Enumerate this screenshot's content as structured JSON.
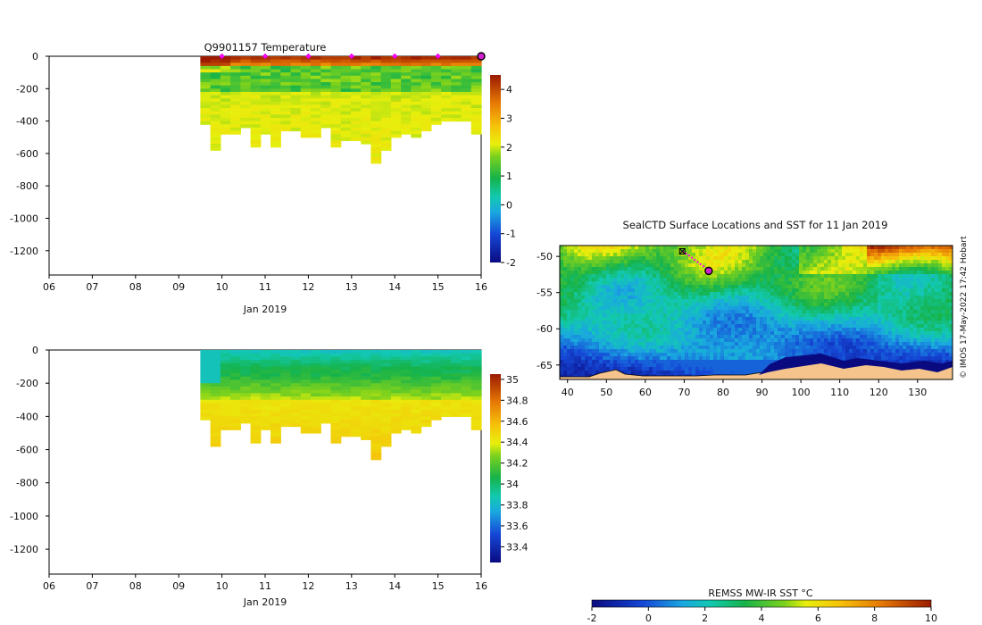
{
  "chart_data": [
    {
      "id": "temperature",
      "type": "heatmap",
      "title": "Q9901157  Temperature",
      "xlabel": "Jan 2019",
      "x_tick_labels": [
        "06",
        "07",
        "08",
        "09",
        "10",
        "11",
        "12",
        "13",
        "14",
        "15",
        "16"
      ],
      "x_range_days": [
        6,
        16
      ],
      "y_ticks": [
        0,
        -200,
        -400,
        -600,
        -800,
        -1000,
        -1200
      ],
      "y_range": [
        -1350,
        0
      ],
      "colorbar": {
        "ticks": [
          -2,
          -1,
          0,
          1,
          2,
          3,
          4
        ],
        "range": [
          -2,
          4.5
        ]
      },
      "profile_start_day": 9.5,
      "profile_max_depths": [
        420,
        570,
        480,
        480,
        430,
        550,
        480,
        550,
        460,
        460,
        490,
        490,
        440,
        550,
        510,
        520,
        530,
        660,
        570,
        490,
        470,
        500,
        460,
        420,
        400,
        390,
        400,
        480
      ],
      "surface_temperature": 4.3,
      "subsurface_min_temperature": 0.8,
      "deep_temperature": 2.2,
      "marker_days": [
        10,
        11,
        12,
        13,
        14,
        15
      ],
      "current_position_day": 16
    },
    {
      "id": "salinity",
      "type": "heatmap",
      "title": "",
      "xlabel": "Jan 2019",
      "x_tick_labels": [
        "06",
        "07",
        "08",
        "09",
        "10",
        "11",
        "12",
        "13",
        "14",
        "15",
        "16"
      ],
      "x_range_days": [
        6,
        16
      ],
      "y_ticks": [
        0,
        -200,
        -400,
        -600,
        -800,
        -1000,
        -1200
      ],
      "y_range": [
        -1350,
        0
      ],
      "colorbar": {
        "ticks": [
          33.4,
          33.6,
          33.8,
          34,
          34.2,
          34.4,
          34.6,
          34.8,
          35
        ],
        "range": [
          33.25,
          35.05
        ]
      },
      "profile_start_day": 9.5,
      "surface_salinity": 33.85,
      "deep_salinity": 34.55
    },
    {
      "id": "sst-map",
      "type": "heatmap",
      "title": "SealCTD Surface Locations and SST for 11 Jan 2019",
      "lon_ticks": [
        40,
        50,
        60,
        70,
        80,
        90,
        100,
        110,
        120,
        130
      ],
      "lon_range": [
        38,
        139
      ],
      "lat_ticks": [
        -50,
        -55,
        -60,
        -65
      ],
      "lat_range": [
        -67,
        -48.5
      ],
      "track_lon": [
        69.5,
        71,
        72.5,
        74,
        75.5,
        76.3
      ],
      "track_lat": [
        -49.3,
        -49.8,
        -50.4,
        -51.0,
        -51.6,
        -52.0
      ],
      "seal_position": {
        "lon": 76.3,
        "lat": -52.0
      },
      "colorbar": {
        "label": "REMSS MW-IR SST °C",
        "ticks": [
          -2,
          0,
          2,
          4,
          6,
          8,
          10
        ],
        "range": [
          -2,
          10
        ]
      }
    }
  ],
  "credit": "© IMOS 17-May-2022 17:42 Hobart"
}
